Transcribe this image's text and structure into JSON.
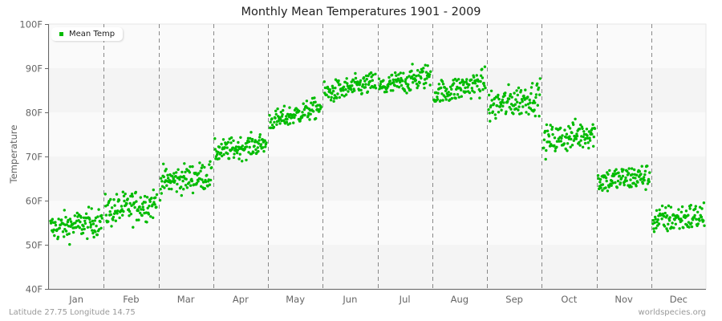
{
  "title": "Monthly Mean Temperatures 1901 - 2009",
  "footer": {
    "location": "Latitude 27.75 Longitude 14.75",
    "source": "worldspecies.org"
  },
  "legend": {
    "label": "Mean Temp",
    "color": "#00bb00"
  },
  "colors": {
    "point": "#00bb00",
    "band_light": "#fafafa",
    "band_dark": "#f4f4f4",
    "divider": "#888888",
    "axis": "#666666"
  },
  "chart_data": {
    "type": "scatter",
    "title": "Monthly Mean Temperatures 1901 - 2009",
    "xlabel": "",
    "ylabel": "Temperature",
    "ylim": [
      40,
      100
    ],
    "yticks": [
      "40F",
      "50F",
      "60F",
      "70F",
      "80F",
      "90F",
      "100F"
    ],
    "categories": [
      "Jan",
      "Feb",
      "Mar",
      "Apr",
      "May",
      "Jun",
      "Jul",
      "Aug",
      "Sep",
      "Oct",
      "Nov",
      "Dec"
    ],
    "years": [
      1901,
      2009
    ],
    "legend": [
      "Mean Temp"
    ],
    "series": [
      {
        "name": "Mean Temp",
        "month_mean": [
          54.5,
          58.5,
          65.0,
          72.0,
          79.5,
          85.5,
          87.0,
          85.5,
          82.5,
          74.5,
          65.0,
          56.0
        ],
        "month_min": [
          48.5,
          53.5,
          60.0,
          67.0,
          76.5,
          82.5,
          83.5,
          82.5,
          76.0,
          68.5,
          59.5,
          50.5
        ],
        "month_max": [
          59.5,
          66.0,
          71.0,
          75.5,
          84.5,
          91.0,
          93.0,
          92.5,
          88.5,
          80.0,
          69.5,
          61.5
        ],
        "month_trend": [
          1.5,
          2.0,
          1.5,
          2.0,
          3.5,
          2.5,
          3.0,
          3.0,
          2.5,
          2.0,
          1.0,
          1.0
        ]
      }
    ],
    "grid": "alternating horizontal bands, dashed vertical month dividers",
    "legend_position": "top-left"
  }
}
